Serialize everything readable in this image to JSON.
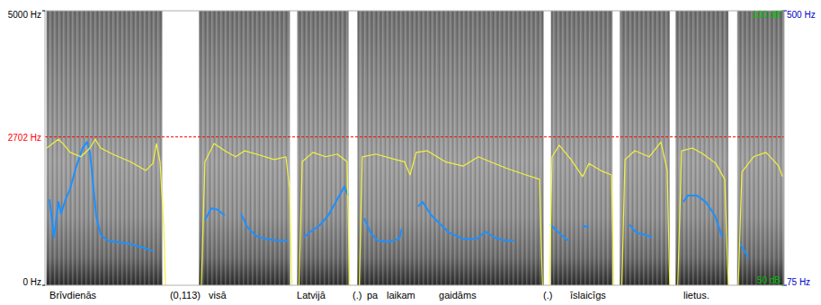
{
  "chart_data": {
    "type": "spectrogram",
    "xlim": [
      0,
      5.04
    ],
    "ylim": [
      0,
      5000
    ],
    "yticks": [
      {
        "value": 0,
        "label": "0 Hz"
      },
      {
        "value": 5000,
        "label": "5000 Hz"
      }
    ],
    "y2lim": [
      75,
      500
    ],
    "y2ticks": [
      {
        "value": 75,
        "label": "75 Hz"
      },
      {
        "value": 500,
        "label": "500 Hz"
      }
    ],
    "y3lim": [
      50,
      100
    ],
    "y3ticks": [
      {
        "value": 50,
        "label": "50 dB"
      },
      {
        "value": 100,
        "label": "100 dB"
      }
    ],
    "cursor": {
      "value": 2702,
      "label": "2702 Hz",
      "color": "#ff0000"
    },
    "sound_intervals": [
      {
        "start": 0.01,
        "end": 0.8
      },
      {
        "start": 1.05,
        "end": 1.67
      },
      {
        "start": 1.72,
        "end": 2.07
      },
      {
        "start": 2.13,
        "end": 3.4
      },
      {
        "start": 3.45,
        "end": 3.87
      },
      {
        "start": 3.92,
        "end": 4.26
      },
      {
        "start": 4.3,
        "end": 4.66
      },
      {
        "start": 4.72,
        "end": 5.04
      }
    ],
    "series": [
      {
        "type": "line",
        "axis": "y2",
        "color": "#1e90ff",
        "x": [
          0.031,
          0.061,
          0.092,
          0.11,
          0.135,
          0.172,
          0.215,
          0.258,
          0.288,
          0.307,
          0.325,
          0.349,
          0.38,
          0.429,
          0.491,
          0.582,
          0.674,
          0.736,
          0.9,
          1.091,
          1.134,
          1.177,
          1.226,
          1.28,
          1.337,
          1.38,
          1.441,
          1.502,
          1.594,
          1.656,
          1.71,
          1.766,
          1.809,
          1.87,
          1.931,
          1.993,
          2.042,
          2.066,
          2.12,
          2.177,
          2.22,
          2.269,
          2.342,
          2.416,
          2.434,
          2.49,
          2.544,
          2.575,
          2.636,
          2.698,
          2.759,
          2.851,
          2.943,
          3.004,
          3.066,
          3.139,
          3.2,
          3.32,
          3.446,
          3.495,
          3.568,
          3.62,
          3.666,
          3.709,
          3.85,
          3.985,
          4.034,
          4.096,
          4.139,
          4.25,
          4.353,
          4.384,
          4.445,
          4.506,
          4.568,
          4.598,
          4.617,
          4.68,
          4.739,
          4.77,
          4.795
        ],
        "values": [
          208,
          149,
          204,
          186,
          204,
          225,
          260,
          288,
          297,
          281,
          239,
          183,
          153,
          144,
          142,
          139,
          133,
          128,
          null,
          176,
          194,
          192,
          183,
          null,
          186,
          165,
          151,
          147,
          144,
          144,
          null,
          149,
          158,
          167,
          183,
          208,
          228,
          214,
          null,
          179,
          156,
          144,
          142,
          147,
          163,
          null,
          197,
          204,
          183,
          169,
          156,
          147,
          147,
          158,
          149,
          144,
          144,
          null,
          169,
          158,
          144,
          null,
          167,
          165,
          null,
          169,
          156,
          153,
          149,
          null,
          204,
          214,
          214,
          204,
          183,
          163,
          149,
          null,
          139,
          128,
          118
        ]
      },
      {
        "type": "line",
        "axis": "y3",
        "color": "#f2f23c",
        "x": [
          0.012,
          0.092,
          0.123,
          0.172,
          0.245,
          0.307,
          0.343,
          0.38,
          0.46,
          0.582,
          0.687,
          0.736,
          0.76,
          0.785,
          0.809,
          0.834,
          1.055,
          1.091,
          1.153,
          1.226,
          1.3,
          1.361,
          1.441,
          1.563,
          1.643,
          1.668,
          1.692,
          1.723,
          1.754,
          1.827,
          1.913,
          1.993,
          2.06,
          2.085,
          2.134,
          2.164,
          2.256,
          2.391,
          2.452,
          2.489,
          2.532,
          2.606,
          2.729,
          2.851,
          2.955,
          3.035,
          3.158,
          3.28,
          3.372,
          3.403,
          3.433,
          3.458,
          3.507,
          3.587,
          3.666,
          3.709,
          3.789,
          3.863,
          3.887,
          3.924,
          3.955,
          4.022,
          4.12,
          4.2,
          4.243,
          4.268,
          4.304,
          4.341,
          4.415,
          4.488,
          4.574,
          4.635,
          4.672,
          4.715,
          4.752,
          4.831,
          4.917,
          5.003,
          5.028
        ],
        "values": [
          75.0,
          76.6,
          75.8,
          74.2,
          73.4,
          75.0,
          76.6,
          75.0,
          73.9,
          72.5,
          70.9,
          72.2,
          75.8,
          72.5,
          61.1,
          40,
          40,
          72.5,
          75.8,
          74.5,
          73.4,
          74.5,
          73.9,
          72.9,
          73.4,
          67.6,
          40,
          40,
          72.5,
          74.2,
          73.4,
          73.9,
          72.5,
          40,
          40,
          73.4,
          73.9,
          72.9,
          72.5,
          70.1,
          74.2,
          74.5,
          72.5,
          71.7,
          73.4,
          72.5,
          71.2,
          70.1,
          69.3,
          40,
          40,
          73.4,
          75.5,
          72.9,
          69.8,
          72.2,
          70.9,
          70.1,
          40,
          40,
          72.9,
          74.5,
          73.4,
          76.1,
          70.9,
          40,
          40,
          74.5,
          75.0,
          73.9,
          72.2,
          69.3,
          40,
          40,
          70.6,
          73.4,
          74.2,
          71.7,
          69.8
        ]
      }
    ],
    "annotations": [
      {
        "text": "Brīvdienās",
        "x": 0.031
      },
      {
        "text": "(0,113)",
        "x": 0.852
      },
      {
        "text": "visā",
        "x": 1.116
      },
      {
        "text": "Latvijā",
        "x": 1.717
      },
      {
        "text": "(.)",
        "x": 2.097
      },
      {
        "text": "pa",
        "x": 2.195
      },
      {
        "text": "laikam",
        "x": 2.33
      },
      {
        "text": "gaidāms",
        "x": 2.686
      },
      {
        "text": "(.)",
        "x": 3.397
      },
      {
        "text": "īslaicīgs",
        "x": 3.581
      },
      {
        "text": "lietus.",
        "x": 4.353
      }
    ]
  }
}
